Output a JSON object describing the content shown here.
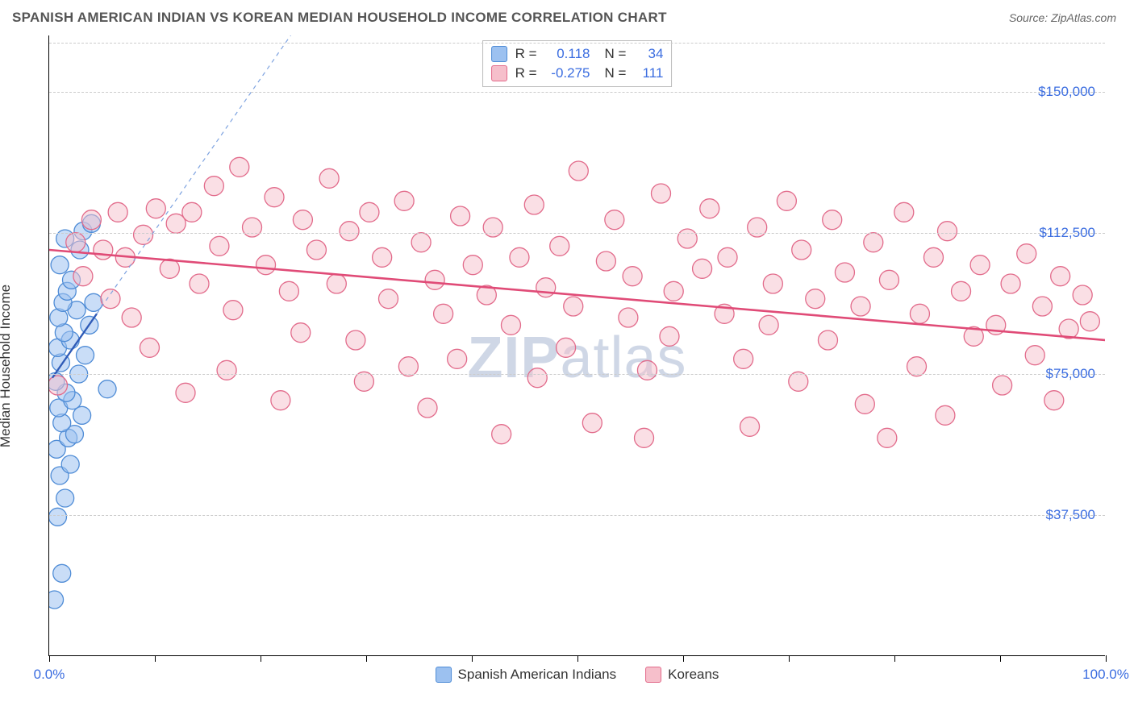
{
  "header": {
    "title": "SPANISH AMERICAN INDIAN VS KOREAN MEDIAN HOUSEHOLD INCOME CORRELATION CHART",
    "source_prefix": "Source: ",
    "source_name": "ZipAtlas.com"
  },
  "chart": {
    "type": "scatter",
    "ylabel": "Median Household Income",
    "watermark": {
      "bold": "ZIP",
      "rest": "atlas"
    },
    "xlim": [
      0,
      100
    ],
    "ylim": [
      0,
      165000
    ],
    "x_unit": "%",
    "y_unit": "$",
    "background_color": "#ffffff",
    "grid_color": "#cccccc",
    "axis_color": "#000000",
    "text_color": "#333333",
    "value_color": "#3b6de0",
    "yticks": [
      {
        "v": 37500,
        "label": "$37,500"
      },
      {
        "v": 75000,
        "label": "$75,000"
      },
      {
        "v": 112500,
        "label": "$112,500"
      },
      {
        "v": 150000,
        "label": "$150,000"
      }
    ],
    "ytop_grid": 163000,
    "xtick_positions": [
      0,
      10,
      20,
      30,
      40,
      50,
      60,
      70,
      80,
      90,
      100
    ],
    "xtick_labels": {
      "0": "0.0%",
      "100": "100.0%"
    },
    "legend_bottom": [
      {
        "label": "Spanish American Indians",
        "fill": "#9cc1f0",
        "stroke": "#4f8cd6"
      },
      {
        "label": "Koreans",
        "fill": "#f6bfcb",
        "stroke": "#e26b8b"
      }
    ],
    "stats": [
      {
        "fill": "#9cc1f0",
        "stroke": "#4f8cd6",
        "r_label": "R =",
        "r": "0.118",
        "n_label": "N =",
        "n": "34"
      },
      {
        "fill": "#f6bfcb",
        "stroke": "#e26b8b",
        "r_label": "R =",
        "r": "-0.275",
        "n_label": "N =",
        "n": "111"
      }
    ],
    "series": [
      {
        "name": "spanish-american-indians",
        "marker": {
          "r": 11,
          "fill": "#9cc1f0",
          "fill_opacity": 0.55,
          "stroke": "#4f8cd6",
          "stroke_width": 1.3
        },
        "trend": {
          "stroke": "#2f5bb7",
          "width": 2.3,
          "dash": null,
          "p1": [
            0.3,
            74000
          ],
          "p2": [
            4.5,
            91000
          ]
        },
        "trend_ext": {
          "stroke": "#7ea3e0",
          "width": 1.2,
          "dash": "5,5",
          "p1": [
            4.5,
            91000
          ],
          "p2": [
            35,
            214000
          ]
        },
        "points": [
          [
            0.5,
            15000
          ],
          [
            1.2,
            22000
          ],
          [
            0.8,
            37000
          ],
          [
            1.5,
            42000
          ],
          [
            1.0,
            48000
          ],
          [
            2.0,
            51000
          ],
          [
            0.7,
            55000
          ],
          [
            1.8,
            58000
          ],
          [
            2.4,
            59000
          ],
          [
            1.2,
            62000
          ],
          [
            3.1,
            64000
          ],
          [
            0.9,
            66000
          ],
          [
            2.2,
            68000
          ],
          [
            1.6,
            70000
          ],
          [
            5.5,
            71000
          ],
          [
            0.6,
            73000
          ],
          [
            2.8,
            75000
          ],
          [
            1.1,
            78000
          ],
          [
            3.4,
            80000
          ],
          [
            0.8,
            82000
          ],
          [
            2.0,
            84000
          ],
          [
            1.4,
            86000
          ],
          [
            3.8,
            88000
          ],
          [
            0.9,
            90000
          ],
          [
            2.6,
            92000
          ],
          [
            1.3,
            94000
          ],
          [
            1.7,
            97000
          ],
          [
            2.1,
            100000
          ],
          [
            4.2,
            94000
          ],
          [
            1.0,
            104000
          ],
          [
            2.9,
            108000
          ],
          [
            1.5,
            111000
          ],
          [
            3.2,
            113000
          ],
          [
            4.0,
            115000
          ]
        ]
      },
      {
        "name": "koreans",
        "marker": {
          "r": 12,
          "fill": "#f6bfcb",
          "fill_opacity": 0.5,
          "stroke": "#e26b8b",
          "stroke_width": 1.3
        },
        "trend": {
          "stroke": "#e04b77",
          "width": 2.6,
          "dash": null,
          "p1": [
            0,
            108000
          ],
          "p2": [
            100,
            84000
          ]
        },
        "points": [
          [
            0.8,
            72000
          ],
          [
            2.5,
            110000
          ],
          [
            4.0,
            116000
          ],
          [
            3.2,
            101000
          ],
          [
            5.1,
            108000
          ],
          [
            6.5,
            118000
          ],
          [
            5.8,
            95000
          ],
          [
            7.2,
            106000
          ],
          [
            8.9,
            112000
          ],
          [
            7.8,
            90000
          ],
          [
            10.1,
            119000
          ],
          [
            11.4,
            103000
          ],
          [
            9.5,
            82000
          ],
          [
            12.0,
            115000
          ],
          [
            13.5,
            118000
          ],
          [
            14.2,
            99000
          ],
          [
            12.9,
            70000
          ],
          [
            15.6,
            125000
          ],
          [
            16.1,
            109000
          ],
          [
            17.4,
            92000
          ],
          [
            18.0,
            130000
          ],
          [
            16.8,
            76000
          ],
          [
            19.2,
            114000
          ],
          [
            20.5,
            104000
          ],
          [
            21.3,
            122000
          ],
          [
            22.7,
            97000
          ],
          [
            21.9,
            68000
          ],
          [
            24.0,
            116000
          ],
          [
            25.3,
            108000
          ],
          [
            23.8,
            86000
          ],
          [
            26.5,
            127000
          ],
          [
            27.2,
            99000
          ],
          [
            28.4,
            113000
          ],
          [
            29.0,
            84000
          ],
          [
            30.3,
            118000
          ],
          [
            31.5,
            106000
          ],
          [
            29.8,
            73000
          ],
          [
            32.1,
            95000
          ],
          [
            33.6,
            121000
          ],
          [
            34.0,
            77000
          ],
          [
            35.2,
            110000
          ],
          [
            36.5,
            100000
          ],
          [
            35.8,
            66000
          ],
          [
            37.3,
            91000
          ],
          [
            38.9,
            117000
          ],
          [
            40.1,
            104000
          ],
          [
            38.6,
            79000
          ],
          [
            41.4,
            96000
          ],
          [
            42.0,
            114000
          ],
          [
            43.7,
            88000
          ],
          [
            44.5,
            106000
          ],
          [
            42.8,
            59000
          ],
          [
            45.9,
            120000
          ],
          [
            47.0,
            98000
          ],
          [
            46.2,
            74000
          ],
          [
            48.3,
            109000
          ],
          [
            49.6,
            93000
          ],
          [
            50.1,
            129000
          ],
          [
            51.4,
            62000
          ],
          [
            48.9,
            82000
          ],
          [
            52.7,
            105000
          ],
          [
            53.5,
            116000
          ],
          [
            54.8,
            90000
          ],
          [
            55.2,
            101000
          ],
          [
            56.6,
            76000
          ],
          [
            57.9,
            123000
          ],
          [
            56.3,
            58000
          ],
          [
            59.1,
            97000
          ],
          [
            60.4,
            111000
          ],
          [
            58.7,
            85000
          ],
          [
            61.8,
            103000
          ],
          [
            62.5,
            119000
          ],
          [
            63.9,
            91000
          ],
          [
            64.2,
            106000
          ],
          [
            65.7,
            79000
          ],
          [
            67.0,
            114000
          ],
          [
            66.3,
            61000
          ],
          [
            68.5,
            99000
          ],
          [
            69.8,
            121000
          ],
          [
            68.1,
            88000
          ],
          [
            71.2,
            108000
          ],
          [
            72.5,
            95000
          ],
          [
            70.9,
            73000
          ],
          [
            74.1,
            116000
          ],
          [
            75.3,
            102000
          ],
          [
            73.7,
            84000
          ],
          [
            76.8,
            93000
          ],
          [
            78.0,
            110000
          ],
          [
            77.2,
            67000
          ],
          [
            79.5,
            100000
          ],
          [
            80.9,
            118000
          ],
          [
            79.3,
            58000
          ],
          [
            82.4,
            91000
          ],
          [
            83.7,
            106000
          ],
          [
            82.1,
            77000
          ],
          [
            85.0,
            113000
          ],
          [
            86.3,
            97000
          ],
          [
            84.8,
            64000
          ],
          [
            88.1,
            104000
          ],
          [
            87.5,
            85000
          ],
          [
            89.6,
            88000
          ],
          [
            91.0,
            99000
          ],
          [
            90.2,
            72000
          ],
          [
            92.5,
            107000
          ],
          [
            94.0,
            93000
          ],
          [
            93.3,
            80000
          ],
          [
            95.7,
            101000
          ],
          [
            96.5,
            87000
          ],
          [
            97.8,
            96000
          ],
          [
            95.1,
            68000
          ],
          [
            98.5,
            89000
          ]
        ]
      }
    ]
  }
}
